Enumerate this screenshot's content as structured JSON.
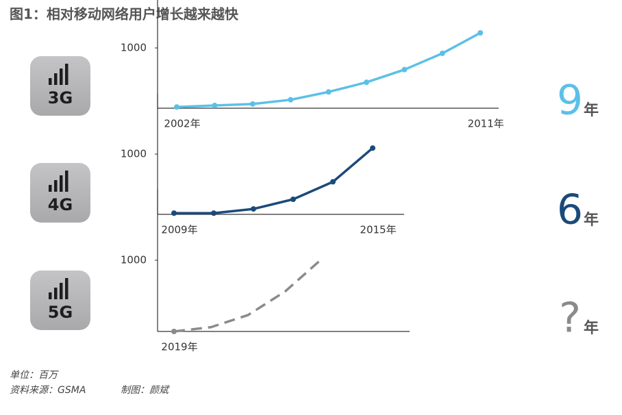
{
  "title": "图1：相对移动网络用户增长越来越快",
  "notes": [
    "单位：百万",
    "资料来源：GSMA",
    "制图：颜斌"
  ],
  "chart_data": [
    {
      "type": "line",
      "icon": "3G",
      "duration": "9",
      "duration_unit": "年",
      "categories": [
        "2002年",
        null,
        null,
        null,
        null,
        null,
        null,
        null,
        "2011年"
      ],
      "series": [
        {
          "name": "3G",
          "color": "#5bc0e8",
          "values": [
            20,
            45,
            70,
            140,
            270,
            430,
            640,
            910,
            1250
          ]
        }
      ],
      "ylim": [
        0,
        2000
      ],
      "yticks": [
        1000
      ],
      "dashed": false,
      "markers": "all"
    },
    {
      "type": "line",
      "icon": "4G",
      "duration": "6",
      "duration_unit": "年",
      "categories": [
        "2009年",
        null,
        null,
        null,
        null,
        "2015年"
      ],
      "series": [
        {
          "name": "4G",
          "color": "#1a4a7a",
          "values": [
            20,
            20,
            90,
            250,
            540,
            1100
          ]
        }
      ],
      "ylim": [
        0,
        2000
      ],
      "yticks": [
        1000
      ],
      "dashed": false,
      "markers": "all"
    },
    {
      "type": "line",
      "icon": "5G",
      "duration": "?",
      "duration_unit": "年",
      "categories": [
        "2019年",
        null,
        null,
        null,
        null
      ],
      "series": [
        {
          "name": "5G",
          "color": "#8a8a8c",
          "values": [
            0,
            60,
            230,
            560,
            1020
          ]
        }
      ],
      "ylim": [
        0,
        2000
      ],
      "yticks": [
        1000
      ],
      "dashed": true,
      "markers": "first"
    }
  ]
}
